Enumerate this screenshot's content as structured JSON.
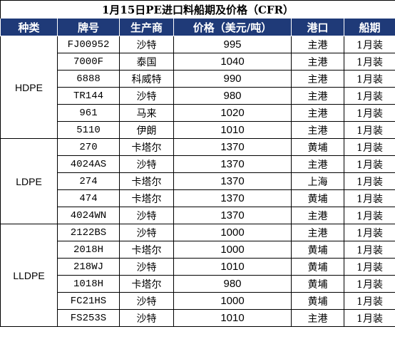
{
  "title": "1月15日PE进口料船期及价格（CFR）",
  "headers": [
    "种类",
    "牌号",
    "生产商",
    "价格（美元/吨）",
    "港口",
    "船期"
  ],
  "groups": [
    {
      "category": "HDPE",
      "rows": [
        {
          "grade": "FJ00952",
          "producer": "沙特",
          "price": "995",
          "port": "主港",
          "schedule": "1月装"
        },
        {
          "grade": "7000F",
          "producer": "泰国",
          "price": "1040",
          "port": "主港",
          "schedule": "1月装"
        },
        {
          "grade": "6888",
          "producer": "科威特",
          "price": "990",
          "port": "主港",
          "schedule": "1月装"
        },
        {
          "grade": "TR144",
          "producer": "沙特",
          "price": "980",
          "port": "主港",
          "schedule": "1月装"
        },
        {
          "grade": "961",
          "producer": "马来",
          "price": "1020",
          "port": "主港",
          "schedule": "1月装"
        },
        {
          "grade": "5110",
          "producer": "伊朗",
          "price": "1010",
          "port": "主港",
          "schedule": "1月装"
        }
      ]
    },
    {
      "category": "LDPE",
      "rows": [
        {
          "grade": "270",
          "producer": "卡塔尔",
          "price": "1370",
          "port": "黄埔",
          "schedule": "1月装"
        },
        {
          "grade": "4024AS",
          "producer": "沙特",
          "price": "1370",
          "port": "主港",
          "schedule": "1月装"
        },
        {
          "grade": "274",
          "producer": "卡塔尔",
          "price": "1370",
          "port": "上海",
          "schedule": "1月装"
        },
        {
          "grade": "474",
          "producer": "卡塔尔",
          "price": "1370",
          "port": "黄埔",
          "schedule": "1月装"
        },
        {
          "grade": "4024WN",
          "producer": "沙特",
          "price": "1370",
          "port": "主港",
          "schedule": "1月装"
        }
      ]
    },
    {
      "category": "LLDPE",
      "rows": [
        {
          "grade": "2122BS",
          "producer": "沙特",
          "price": "1000",
          "port": "主港",
          "schedule": "1月装"
        },
        {
          "grade": "2018H",
          "producer": "卡塔尔",
          "price": "1000",
          "port": "黄埔",
          "schedule": "1月装"
        },
        {
          "grade": "218WJ",
          "producer": "沙特",
          "price": "1010",
          "port": "黄埔",
          "schedule": "1月装"
        },
        {
          "grade": "1018H",
          "producer": "卡塔尔",
          "price": "980",
          "port": "黄埔",
          "schedule": "1月装"
        },
        {
          "grade": "FC21HS",
          "producer": "沙特",
          "price": "1000",
          "port": "黄埔",
          "schedule": "1月装"
        },
        {
          "grade": "FS253S",
          "producer": "沙特",
          "price": "1010",
          "port": "主港",
          "schedule": "1月装"
        }
      ]
    }
  ],
  "colors": {
    "header_bg": "#1f3a78",
    "header_text": "#ffffff"
  }
}
